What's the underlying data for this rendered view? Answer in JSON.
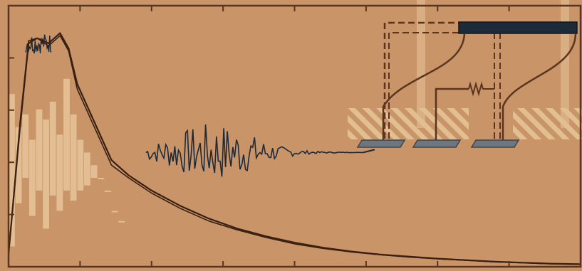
{
  "figure": {
    "background_color": "#c89468",
    "frame_color": "#5b3420",
    "curve_color": "#3a2012",
    "bar_color": "#e6c69a",
    "noise_color": "#1c2a3a",
    "electrode_color": "#6e7780",
    "hatch_color": "#e2bf90",
    "resistor_label": "",
    "chart_data": {
      "type": "line",
      "title": "",
      "xlabel": "",
      "ylabel": "",
      "x_ticks": 7,
      "y_ticks": 4,
      "series": [
        {
          "values": [
            [
              0.0,
              0.05
            ],
            [
              0.02,
              0.55
            ],
            [
              0.035,
              0.88
            ],
            [
              0.05,
              0.9
            ],
            [
              0.07,
              0.88
            ],
            [
              0.09,
              0.92
            ],
            [
              0.105,
              0.86
            ],
            [
              0.12,
              0.72
            ],
            [
              0.14,
              0.62
            ],
            [
              0.16,
              0.52
            ],
            [
              0.18,
              0.42
            ],
            [
              0.21,
              0.36
            ],
            [
              0.25,
              0.3
            ],
            [
              0.3,
              0.24
            ],
            [
              0.35,
              0.19
            ],
            [
              0.4,
              0.15
            ],
            [
              0.45,
              0.12
            ],
            [
              0.5,
              0.095
            ],
            [
              0.55,
              0.075
            ],
            [
              0.6,
              0.06
            ],
            [
              0.65,
              0.048
            ],
            [
              0.7,
              0.04
            ],
            [
              0.75,
              0.032
            ],
            [
              0.8,
              0.026
            ],
            [
              0.85,
              0.02
            ],
            [
              0.9,
              0.016
            ],
            [
              0.95,
              0.012
            ],
            [
              1.0,
              0.01
            ]
          ]
        },
        {
          "values": [
            [
              0.0,
              0.05
            ],
            [
              0.02,
              0.57
            ],
            [
              0.035,
              0.89
            ],
            [
              0.05,
              0.9
            ],
            [
              0.07,
              0.87
            ],
            [
              0.09,
              0.91
            ],
            [
              0.105,
              0.85
            ],
            [
              0.12,
              0.7
            ],
            [
              0.14,
              0.6
            ],
            [
              0.16,
              0.5
            ],
            [
              0.18,
              0.4
            ],
            [
              0.21,
              0.35
            ],
            [
              0.25,
              0.29
            ],
            [
              0.3,
              0.23
            ],
            [
              0.35,
              0.18
            ],
            [
              0.4,
              0.145
            ],
            [
              0.45,
              0.115
            ],
            [
              0.5,
              0.09
            ],
            [
              0.55,
              0.072
            ],
            [
              0.6,
              0.058
            ],
            [
              0.65,
              0.047
            ],
            [
              0.7,
              0.038
            ],
            [
              0.75,
              0.031
            ],
            [
              0.8,
              0.025
            ],
            [
              0.85,
              0.019
            ],
            [
              0.9,
              0.015
            ],
            [
              0.95,
              0.011
            ],
            [
              1.0,
              0.009
            ]
          ]
        }
      ],
      "noise_series": {
        "x_start": 0.24,
        "x_end": 0.62,
        "peak_x": 0.36,
        "amplitude": 0.12,
        "samples": 120,
        "baseline_y": 0.45
      },
      "histogram_bars": [
        [
          0.0,
          0.68,
          0.08
        ],
        [
          0.012,
          0.55,
          0.25
        ],
        [
          0.024,
          0.6,
          0.35
        ],
        [
          0.036,
          0.5,
          0.2
        ],
        [
          0.048,
          0.62,
          0.3
        ],
        [
          0.06,
          0.58,
          0.15
        ],
        [
          0.072,
          0.65,
          0.28
        ],
        [
          0.084,
          0.52,
          0.22
        ],
        [
          0.096,
          0.74,
          0.3
        ],
        [
          0.108,
          0.6,
          0.26
        ],
        [
          0.12,
          0.5,
          0.3
        ],
        [
          0.132,
          0.45,
          0.32
        ],
        [
          0.144,
          0.4,
          0.35
        ],
        [
          0.156,
          0.35,
          0.4
        ],
        [
          0.168,
          0.3,
          0.42
        ],
        [
          0.18,
          0.22,
          0.46
        ],
        [
          0.192,
          0.18,
          0.48
        ]
      ]
    },
    "schematic": {
      "electrodes": 3,
      "components": [
        "top-electrode-bar",
        "left-wire",
        "middle-wire",
        "right-wire",
        "resistor",
        "ground-hatch"
      ]
    }
  }
}
